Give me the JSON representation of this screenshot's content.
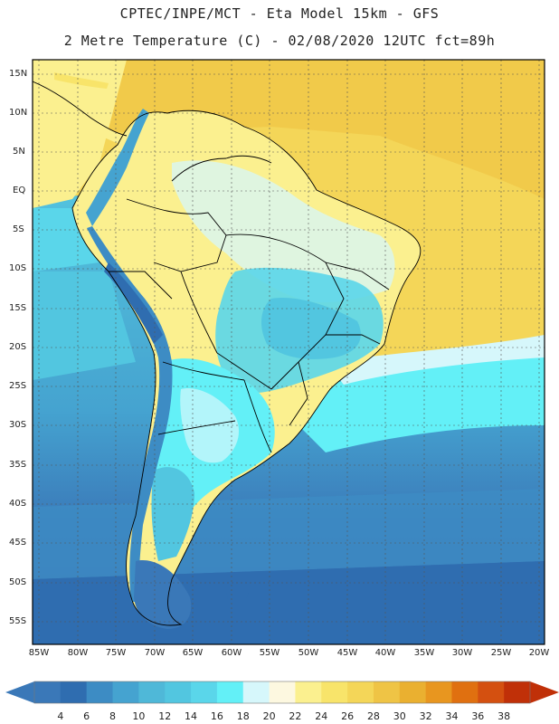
{
  "title_line1": "CPTEC/INPE/MCT -  Eta Model 15km - GFS",
  "title_line2": "2 Metre Temperature (C) - 02/08/2020 12UTC fct=89h",
  "lat_labels": [
    "15N",
    "10N",
    "5N",
    "EQ",
    "5S",
    "10S",
    "15S",
    "20S",
    "25S",
    "30S",
    "35S",
    "40S",
    "45S",
    "50S",
    "55S"
  ],
  "lon_labels": [
    "85W",
    "80W",
    "75W",
    "70W",
    "65W",
    "60W",
    "55W",
    "50W",
    "45W",
    "40W",
    "35W",
    "30W",
    "25W",
    "20W"
  ],
  "colorbar": {
    "labels": [
      "4",
      "6",
      "8",
      "10",
      "12",
      "14",
      "16",
      "18",
      "20",
      "22",
      "24",
      "26",
      "28",
      "30",
      "32",
      "34",
      "36",
      "38"
    ],
    "colors": [
      "#3a78b8",
      "#2f6db0",
      "#3d8cc4",
      "#45a3d0",
      "#4fb8d8",
      "#52c6e0",
      "#5ad6ea",
      "#63f0f7",
      "#d6f7fb",
      "#fdf8e0",
      "#fbf08f",
      "#f8e46a",
      "#f4d658",
      "#efc445",
      "#eab030",
      "#e8961f",
      "#e07010",
      "#d45010",
      "#c03008"
    ]
  },
  "legend_colors": {
    "ocean_cold": "#3a78b8",
    "ocean_mid": "#4fb8d8",
    "ocean_warm": "#5ad6ea",
    "land_warm": "#fbf08f",
    "tropical_ocean": "#f4d658",
    "andes": "#45a3d0"
  }
}
